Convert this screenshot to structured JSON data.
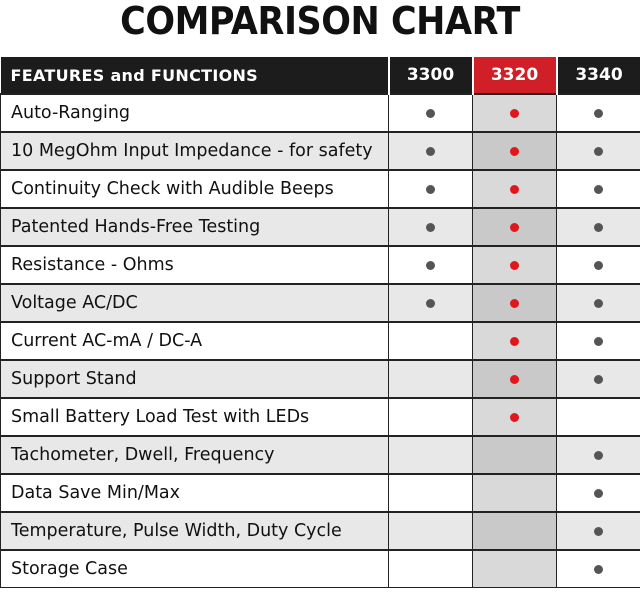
{
  "title": "COMPARISON CHART",
  "header": {
    "features_label": "FEATURES and FUNCTIONS",
    "models": [
      "3300",
      "3320",
      "3340"
    ]
  },
  "colors": {
    "header_bg": "#1c1c1c",
    "highlight_header": "#d01f26",
    "dot_gray": "#555555",
    "dot_red": "#e0171d",
    "highlight_column_bg": "#d9d9d9"
  },
  "rows": [
    {
      "feature": "Auto-Ranging",
      "m3300": true,
      "m3320": true,
      "m3340": true
    },
    {
      "feature": "10 MegOhm Input Impedance - for safety",
      "m3300": true,
      "m3320": true,
      "m3340": true
    },
    {
      "feature": "Continuity Check with Audible Beeps",
      "m3300": true,
      "m3320": true,
      "m3340": true
    },
    {
      "feature": "Patented Hands-Free Testing",
      "m3300": true,
      "m3320": true,
      "m3340": true
    },
    {
      "feature": "Resistance - Ohms",
      "m3300": true,
      "m3320": true,
      "m3340": true
    },
    {
      "feature": "Voltage AC/DC",
      "m3300": true,
      "m3320": true,
      "m3340": true
    },
    {
      "feature": "Current AC-mA / DC-A",
      "m3300": false,
      "m3320": true,
      "m3340": true
    },
    {
      "feature": "Support Stand",
      "m3300": false,
      "m3320": true,
      "m3340": true
    },
    {
      "feature": "Small Battery Load Test with LEDs",
      "m3300": false,
      "m3320": true,
      "m3340": false
    },
    {
      "feature": "Tachometer, Dwell, Frequency",
      "m3300": false,
      "m3320": false,
      "m3340": true
    },
    {
      "feature": "Data Save Min/Max",
      "m3300": false,
      "m3320": false,
      "m3340": true
    },
    {
      "feature": "Temperature, Pulse Width, Duty Cycle",
      "m3300": false,
      "m3320": false,
      "m3340": true
    },
    {
      "feature": "Storage Case",
      "m3300": false,
      "m3320": false,
      "m3340": true
    }
  ]
}
